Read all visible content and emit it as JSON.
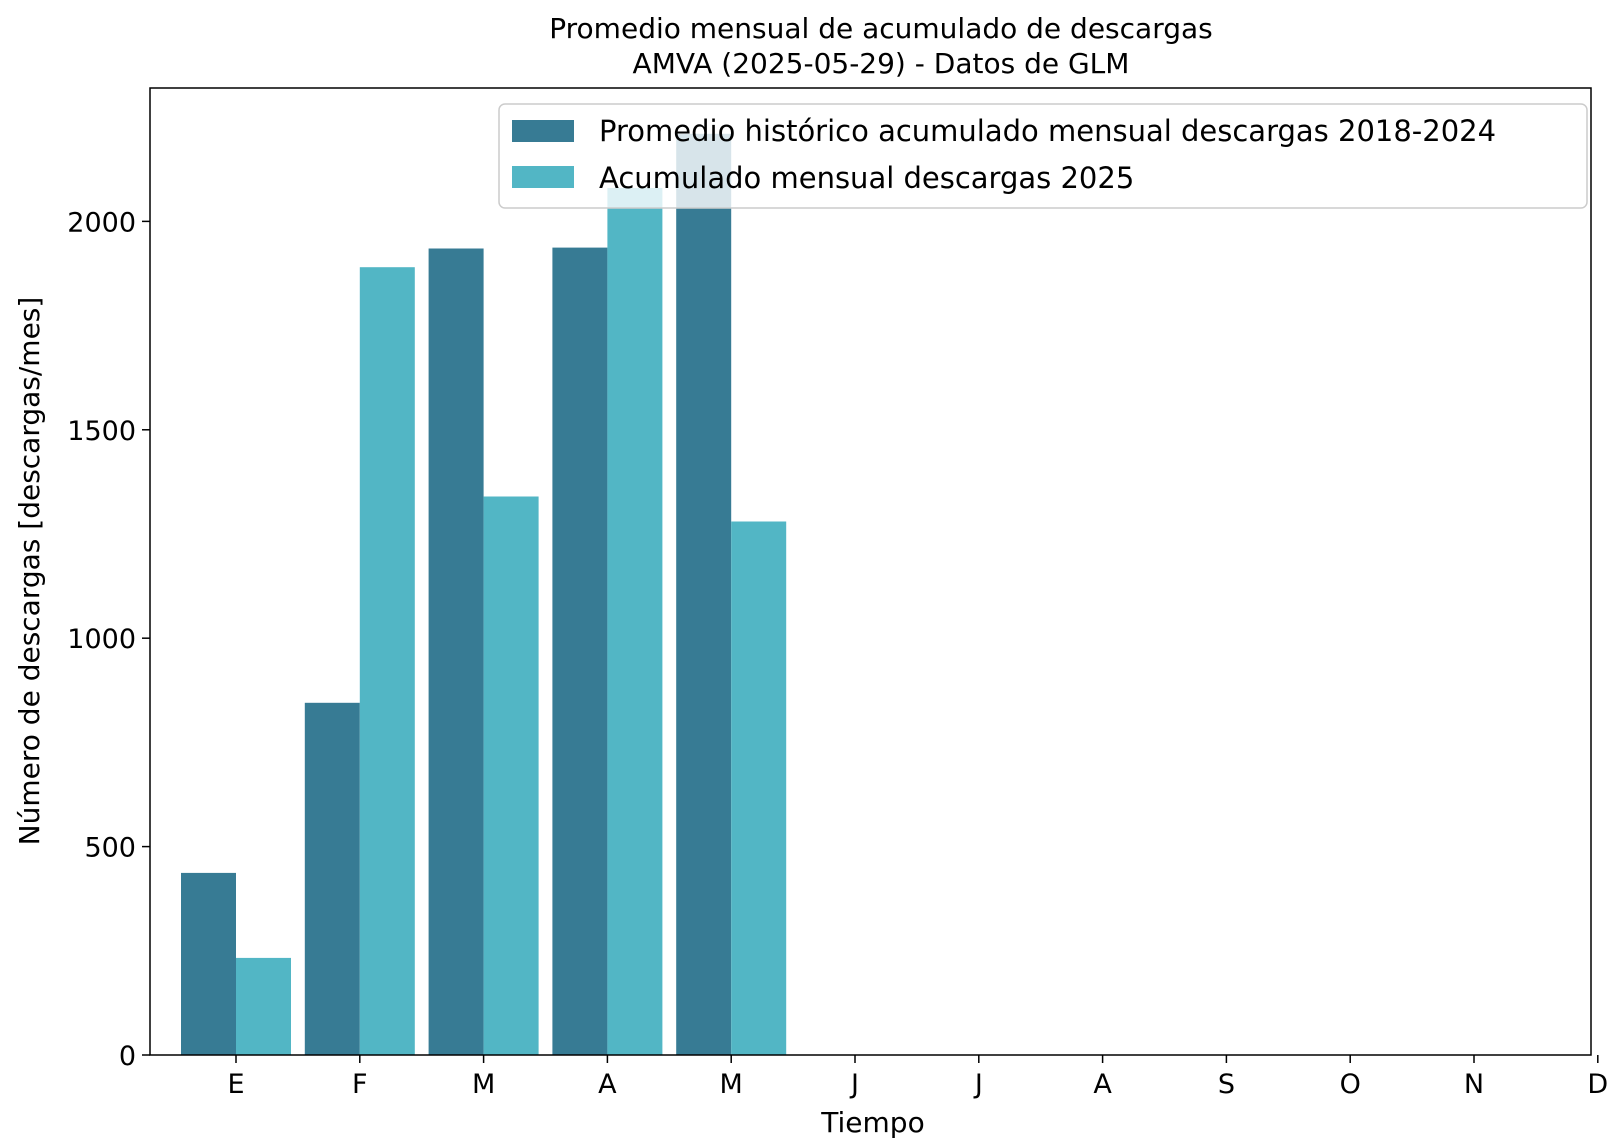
{
  "chart_data": {
    "type": "bar",
    "title_line1": "Promedio mensual de acumulado de descargas",
    "title_line2": "AMVA (2025-05-29) - Datos de GLM",
    "xlabel": "Tiempo",
    "ylabel": "Número de descargas [descargas/mes]",
    "categories": [
      "E",
      "F",
      "M",
      "A",
      "M",
      "J",
      "J",
      "A",
      "S",
      "O",
      "N",
      "D"
    ],
    "ylim": [
      0,
      2320
    ],
    "yticks": [
      0,
      500,
      1000,
      1500,
      2000
    ],
    "grid": false,
    "legend_position": "top-right",
    "series": [
      {
        "name": "Promedio histórico acumulado mensual descargas 2018-2024",
        "color": "#377b94",
        "values": [
          437,
          845,
          1935,
          1937,
          2210,
          null,
          null,
          null,
          null,
          null,
          null,
          null
        ]
      },
      {
        "name": "Acumulado mensual descargas 2025",
        "color": "#52b6c5",
        "values": [
          233,
          1890,
          1340,
          2080,
          1280,
          null,
          null,
          null,
          null,
          null,
          null,
          null
        ]
      }
    ]
  }
}
